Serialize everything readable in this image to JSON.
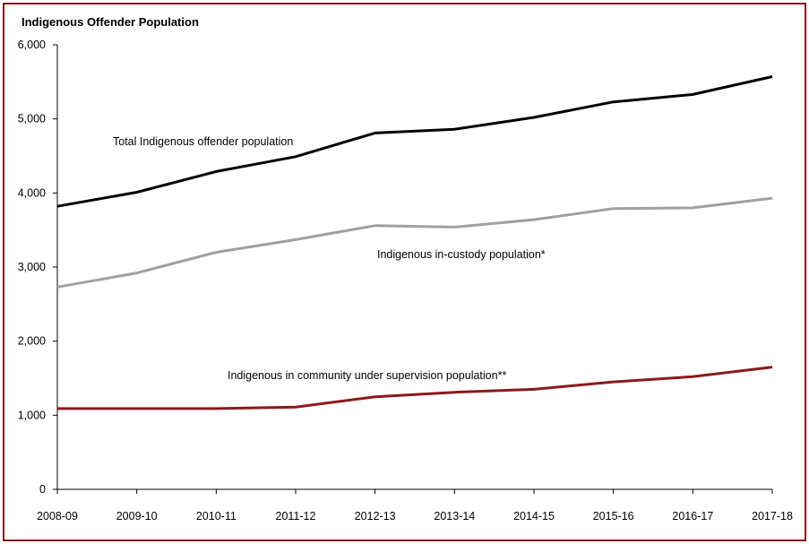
{
  "chart_data": {
    "type": "line",
    "title": "Indigenous Offender Population",
    "xlabel": "",
    "ylabel": "",
    "ylim": [
      0,
      6000
    ],
    "yticks": [
      0,
      1000,
      2000,
      3000,
      4000,
      5000,
      6000
    ],
    "ytick_labels": [
      "0",
      "1,000",
      "2,000",
      "3,000",
      "4,000",
      "5,000",
      "6,000"
    ],
    "grid": false,
    "legend": "none",
    "categories": [
      "2008-09",
      "2009-10",
      "2010-11",
      "2011-12",
      "2012-13",
      "2013-14",
      "2014-15",
      "2015-16",
      "2016-17",
      "2017-18"
    ],
    "series": [
      {
        "name": "Total Indigenous offender population",
        "color": "#000000",
        "values": [
          3820,
          4010,
          4290,
          4490,
          4810,
          4860,
          5020,
          5230,
          5330,
          5570
        ]
      },
      {
        "name": "Indigenous in-custody population*",
        "color": "#a0a0a0",
        "values": [
          2730,
          2920,
          3200,
          3370,
          3560,
          3540,
          3640,
          3790,
          3800,
          3930
        ]
      },
      {
        "name": "Indigenous in community under supervision population**",
        "color": "#8b1a1a",
        "values": [
          1090,
          1090,
          1090,
          1110,
          1250,
          1310,
          1350,
          1450,
          1520,
          1650
        ]
      }
    ],
    "annotations": [
      "Total Indigenous offender population",
      "Indigenous in-custody population*",
      "Indigenous in community under supervision population**"
    ]
  }
}
